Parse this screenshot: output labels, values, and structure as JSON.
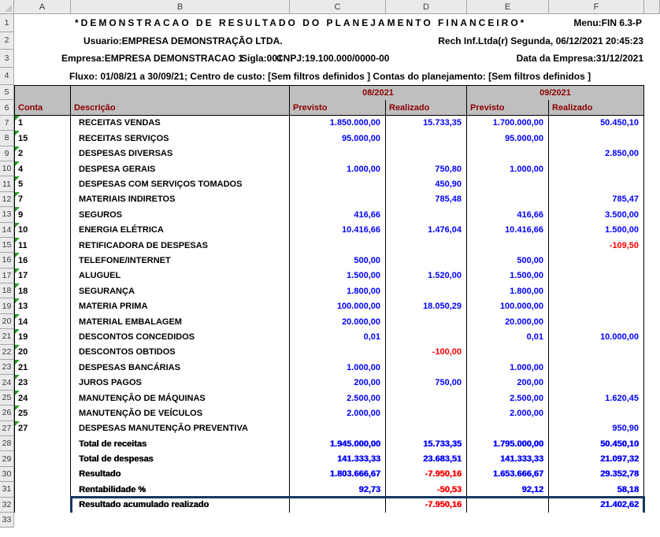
{
  "sheet": {
    "column_letters": [
      "A",
      "B",
      "C",
      "D",
      "E",
      "F"
    ],
    "row_numbers": [
      "1",
      "2",
      "3",
      "4",
      "5",
      "6",
      "7",
      "8",
      "9",
      "10",
      "11",
      "12",
      "13",
      "14",
      "15",
      "16",
      "17",
      "18",
      "19",
      "20",
      "21",
      "22",
      "23",
      "24",
      "25",
      "26",
      "27",
      "28",
      "29",
      "30",
      "31",
      "32",
      "33"
    ]
  },
  "header": {
    "title": "*DEMONSTRACAO DE RESULTADO DO PLANEJAMENTO FINANCEIRO*",
    "menu": "Menu:FIN 6.3-P",
    "usuario": "Usuario:EMPRESA DEMONSTRAÇÃO LTDA.",
    "sistema_data": "Rech Inf.Ltda(r)  Segunda, 06/12/2021 20:45:23",
    "empresa": "Empresa:EMPRESA DEMONSTRACAO 1",
    "sigla": "Sigla:001",
    "cnpj": "CNPJ:19.100.000/0000-00",
    "data_empresa": "Data da Empresa:31/12/2021",
    "fluxo": "Fluxo: 01/08/21 a 30/09/21; Centro de custo: [Sem filtros definidos ] Contas do planejamento: [Sem filtros definidos ]"
  },
  "table": {
    "period_headers": [
      "08/2021",
      "09/2021"
    ],
    "col_headers": [
      "Conta",
      "Descrição",
      "Previsto",
      "Realizado",
      "Previsto",
      "Realizado"
    ],
    "rows": [
      {
        "conta": "1",
        "descricao": "RECEITAS VENDAS",
        "values": [
          "1.850.000,00",
          "15.733,35",
          "1.700.000,00",
          "50.450,10"
        ]
      },
      {
        "conta": "15",
        "descricao": "RECEITAS SERVIÇOS",
        "values": [
          "95.000,00",
          "",
          "95.000,00",
          ""
        ]
      },
      {
        "conta": "2",
        "descricao": "DESPESAS DIVERSAS",
        "values": [
          "",
          "",
          "",
          "2.850,00"
        ]
      },
      {
        "conta": "4",
        "descricao": "DESPESA GERAIS",
        "values": [
          "1.000,00",
          "750,80",
          "1.000,00",
          ""
        ]
      },
      {
        "conta": "5",
        "descricao": "DESPESAS COM SERVIÇOS TOMADOS",
        "values": [
          "",
          "450,90",
          "",
          ""
        ]
      },
      {
        "conta": "7",
        "descricao": "MATERIAIS INDIRETOS",
        "values": [
          "",
          "785,48",
          "",
          "785,47"
        ]
      },
      {
        "conta": "9",
        "descricao": "SEGUROS",
        "values": [
          "416,66",
          "",
          "416,66",
          "3.500,00"
        ]
      },
      {
        "conta": "10",
        "descricao": "ENERGIA ELÉTRICA",
        "values": [
          "10.416,66",
          "1.476,04",
          "10.416,66",
          "1.500,00"
        ]
      },
      {
        "conta": "11",
        "descricao": "RETIFICADORA DE DESPESAS",
        "values": [
          "",
          "",
          "",
          "-109,50"
        ]
      },
      {
        "conta": "16",
        "descricao": "TELEFONE/INTERNET",
        "values": [
          "500,00",
          "",
          "500,00",
          ""
        ]
      },
      {
        "conta": "17",
        "descricao": "ALUGUEL",
        "values": [
          "1.500,00",
          "1.520,00",
          "1.500,00",
          ""
        ]
      },
      {
        "conta": "18",
        "descricao": "SEGURANÇA",
        "values": [
          "1.800,00",
          "",
          "1.800,00",
          ""
        ]
      },
      {
        "conta": "13",
        "descricao": "MATERIA PRIMA",
        "values": [
          "100.000,00",
          "18.050,29",
          "100.000,00",
          ""
        ]
      },
      {
        "conta": "14",
        "descricao": "MATERIAL EMBALAGEM",
        "values": [
          "20.000,00",
          "",
          "20.000,00",
          ""
        ]
      },
      {
        "conta": "19",
        "descricao": "DESCONTOS CONCEDIDOS",
        "values": [
          "0,01",
          "",
          "0,01",
          "10.000,00"
        ]
      },
      {
        "conta": "20",
        "descricao": "DESCONTOS OBTIDOS",
        "values": [
          "",
          "-100,00",
          "",
          ""
        ]
      },
      {
        "conta": "21",
        "descricao": "DESPESAS BANCÁRIAS",
        "values": [
          "1.000,00",
          "",
          "1.000,00",
          ""
        ]
      },
      {
        "conta": "23",
        "descricao": "JUROS PAGOS",
        "values": [
          "200,00",
          "750,00",
          "200,00",
          ""
        ]
      },
      {
        "conta": "24",
        "descricao": "MANUTENÇÃO DE MÁQUINAS",
        "values": [
          "2.500,00",
          "",
          "2.500,00",
          "1.620,45"
        ]
      },
      {
        "conta": "25",
        "descricao": "MANUTENÇÃO DE VEÍCULOS",
        "values": [
          "2.000,00",
          "",
          "2.000,00",
          ""
        ]
      },
      {
        "conta": "27",
        "descricao": "DESPESAS MANUTENÇÃO PREVENTIVA",
        "values": [
          "",
          "",
          "",
          "950,90"
        ]
      }
    ],
    "totals": [
      {
        "label": "Total de receitas",
        "values": [
          "1.945.000,00",
          "15.733,35",
          "1.795.000,00",
          "50.450,10"
        ]
      },
      {
        "label": "Total de despesas",
        "values": [
          "141.333,33",
          "23.683,51",
          "141.333,33",
          "21.097,32"
        ]
      },
      {
        "label": "Resultado",
        "values": [
          "1.803.666,67",
          "-7.950,16",
          "1.653.666,67",
          "29.352,78"
        ]
      },
      {
        "label": "Rentabilidade %",
        "values": [
          "92,73",
          "-50,53",
          "92,12",
          "58,18"
        ]
      }
    ],
    "accumulated": {
      "label": "Resultado acumulado realizado",
      "values": [
        "",
        "-7.950,16",
        "",
        "21.402,62"
      ]
    }
  },
  "colors": {
    "value_blue": "#0000FF",
    "negative_red": "#FF0000",
    "header_text_dark_red": "#8B0000",
    "header_band_gray": "#BFBFBF",
    "highlight_box_navy": "#17375E",
    "flag_green": "#28A028"
  }
}
